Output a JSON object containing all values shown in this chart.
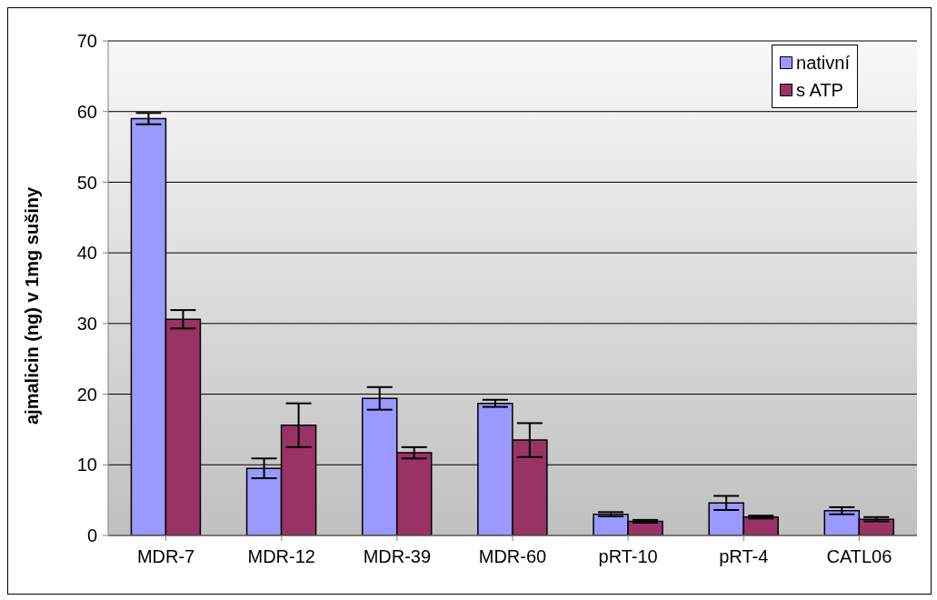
{
  "chart_data": {
    "type": "bar",
    "ylabel": "ajmalicin (ng) v 1mg sušiny",
    "categories": [
      "MDR-7",
      "MDR-12",
      "MDR-39",
      "MDR-60",
      "pRT-10",
      "pRT-4",
      "CATL06"
    ],
    "series": [
      {
        "name": "nativní",
        "color": "#9999ff",
        "values": [
          59,
          9.5,
          19.4,
          18.7,
          3.0,
          4.6,
          3.5
        ],
        "errors": [
          0.8,
          1.4,
          1.6,
          0.5,
          0.3,
          1.0,
          0.5
        ]
      },
      {
        "name": "s ATP",
        "color": "#993366",
        "values": [
          30.6,
          15.6,
          11.7,
          13.5,
          2.0,
          2.6,
          2.3
        ],
        "errors": [
          1.3,
          3.1,
          0.8,
          2.4,
          0.2,
          0.2,
          0.3
        ]
      }
    ],
    "ylim": [
      0,
      70
    ],
    "yticks": [
      0,
      10,
      20,
      30,
      40,
      50,
      60,
      70
    ],
    "grid": "y",
    "legend": "top right"
  }
}
